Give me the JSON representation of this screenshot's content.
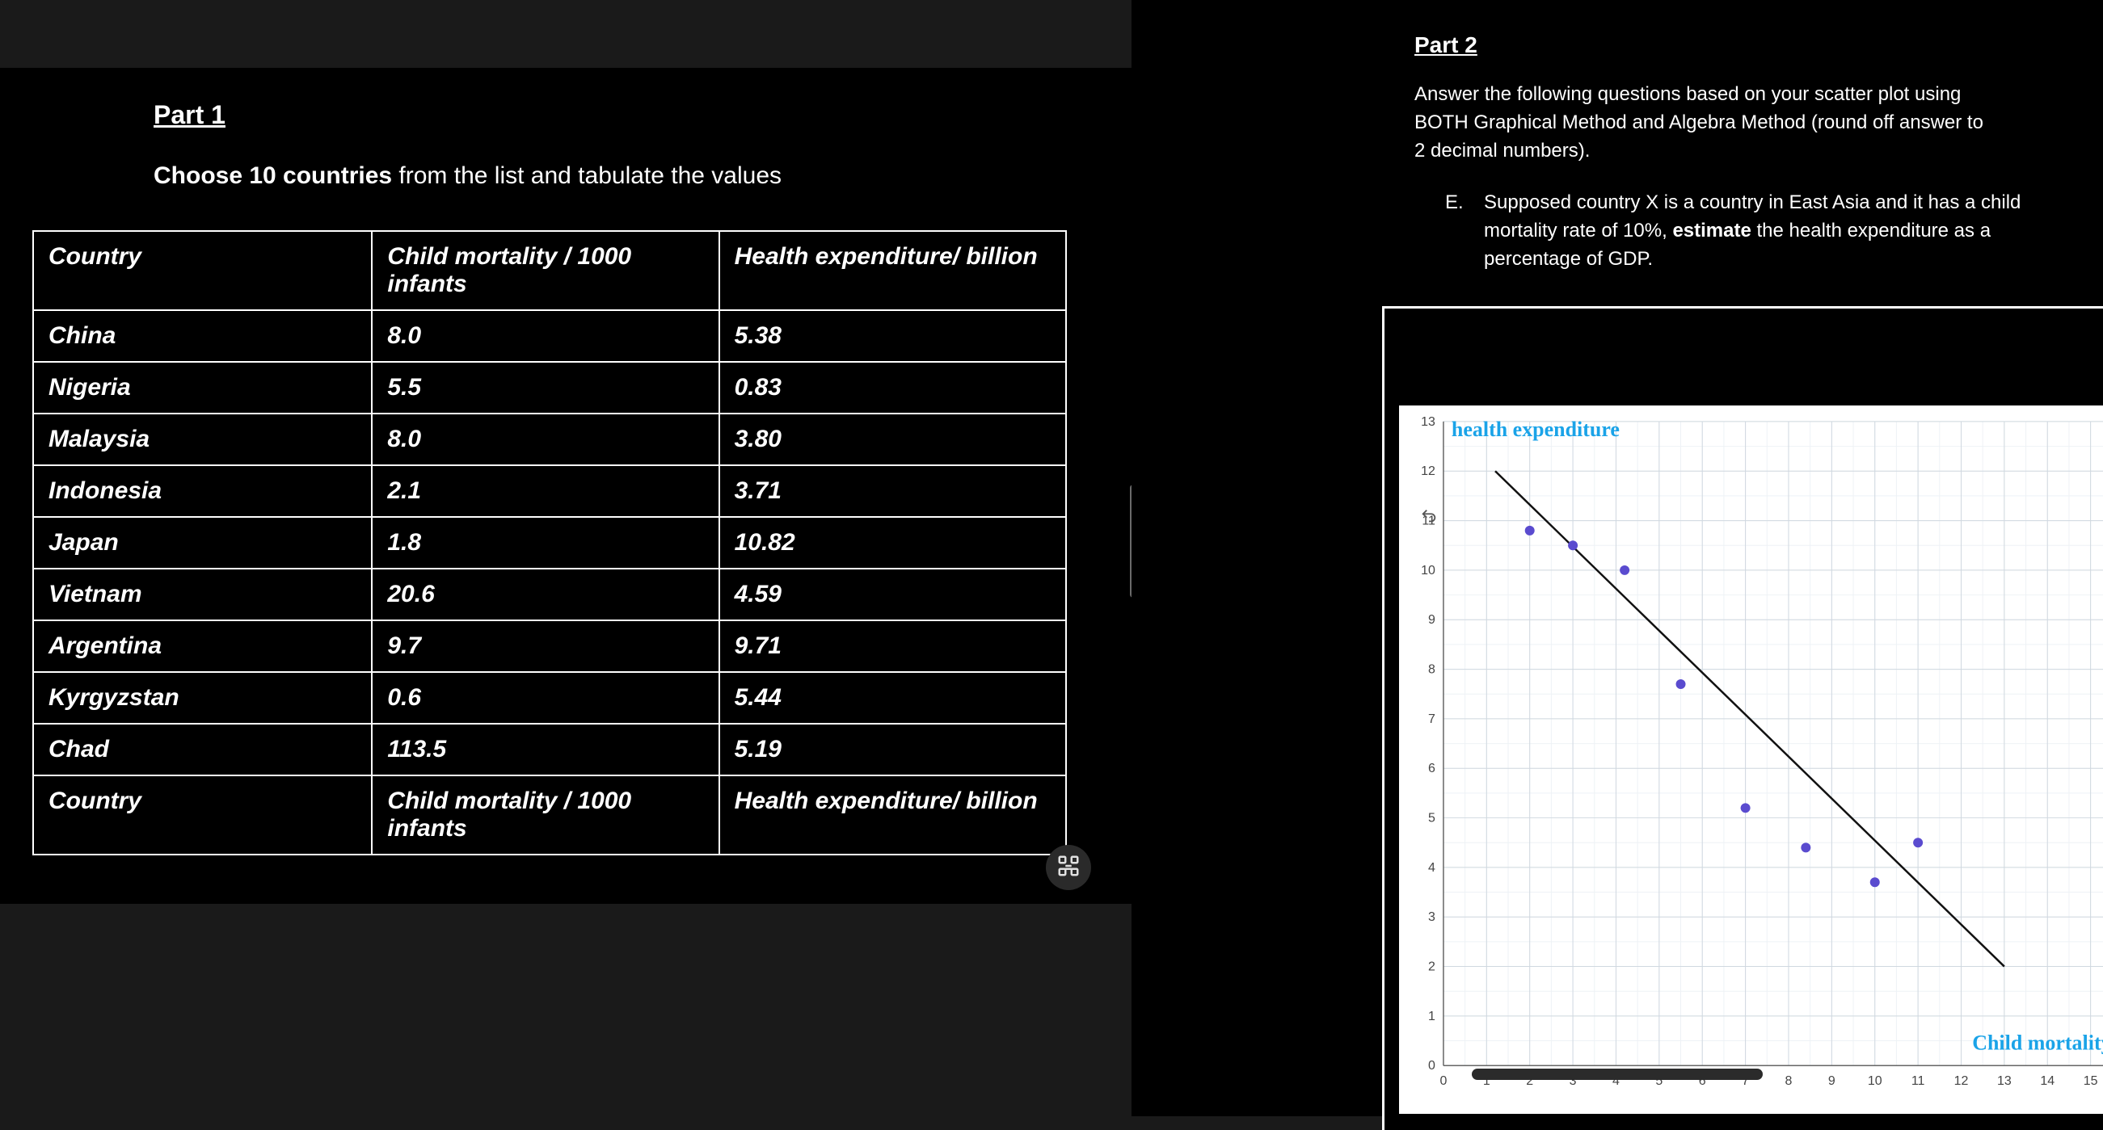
{
  "part1": {
    "title": "Part 1",
    "instruction_bold": "Choose 10 countries",
    "instruction_rest": " from the list and tabulate the values",
    "table": {
      "columns": [
        "Country",
        "Child mortality / 1000 infants",
        "Health expenditure/ billion"
      ],
      "rows": [
        [
          "China",
          "8.0",
          "5.38"
        ],
        [
          "Nigeria",
          "5.5",
          "0.83"
        ],
        [
          "Malaysia",
          "8.0",
          "3.80"
        ],
        [
          "Indonesia",
          "2.1",
          "3.71"
        ],
        [
          "Japan",
          "1.8",
          "10.82"
        ],
        [
          "Vietnam",
          "20.6",
          "4.59"
        ],
        [
          "Argentina",
          "9.7",
          "9.71"
        ],
        [
          "Kyrgyzstan",
          "0.6",
          "5.44"
        ],
        [
          "Chad",
          "113.5",
          "5.19"
        ],
        [
          "Country",
          "Child mortality / 1000 infants",
          "Health expenditure/ billion"
        ]
      ],
      "border_color": "#ffffff",
      "bg_color": "#000000",
      "text_color": "#ffffff",
      "font_size": 30,
      "italic": true
    }
  },
  "part2": {
    "title": "Part 2",
    "intro": "Answer the following questions based on your scatter plot using BOTH Graphical Method and Algebra Method (round off answer to 2 decimal numbers).",
    "question": {
      "letter": "E.",
      "text_before_bold": "Supposed country X is a country in East Asia and it has a child mortality rate of 10%, ",
      "bold_word": "estimate",
      "text_after_bold": " the health expenditure as a percentage of GDP."
    }
  },
  "chart": {
    "type": "scatter",
    "background_color": "#ffffff",
    "grid_color": "#d0d8e0",
    "grid_minor_color": "#eef2f6",
    "point_color": "#5a4bcf",
    "point_radius": 6,
    "trend_line_color": "#111111",
    "trend_line_width": 2.5,
    "y_axis_label": "health expenditure",
    "x_axis_label": "Child mortality",
    "label_color": "#1aa3e8",
    "label_fontsize": 26,
    "tick_color": "#444444",
    "tick_fontsize": 16,
    "xlim": [
      0,
      16
    ],
    "ylim": [
      0,
      13
    ],
    "xtick_step": 1,
    "ytick_step": 1,
    "trend_line": {
      "x1": 1.2,
      "y1": 12.0,
      "x2": 13.0,
      "y2": 2.0
    },
    "points": [
      {
        "x": 2.0,
        "y": 10.8
      },
      {
        "x": 3.0,
        "y": 10.5
      },
      {
        "x": 4.2,
        "y": 10.0
      },
      {
        "x": 5.5,
        "y": 7.7
      },
      {
        "x": 7.0,
        "y": 5.2
      },
      {
        "x": 8.4,
        "y": 4.4
      },
      {
        "x": 10.0,
        "y": 3.7
      },
      {
        "x": 11.0,
        "y": 4.5
      }
    ]
  },
  "colors": {
    "page_bg": "#1a1a1a",
    "panel_bg": "#000000",
    "text": "#ffffff"
  }
}
